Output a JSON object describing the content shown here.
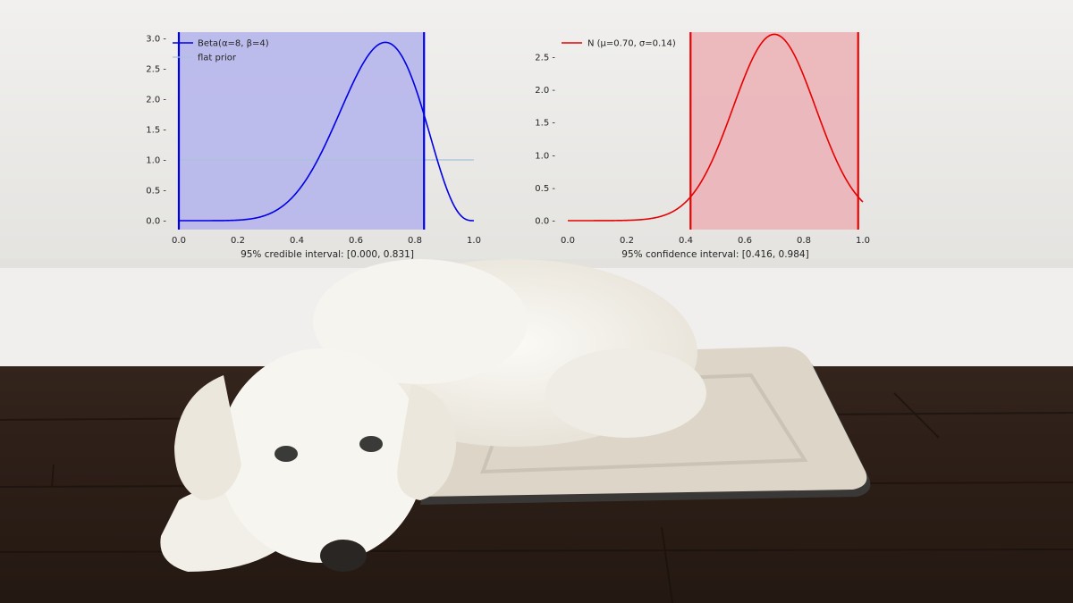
{
  "colors": {
    "beta_curve": "#0000e6",
    "beta_fill": "#b3b3ec",
    "flat_prior": "#a8c2d8",
    "normal_curve": "#e60000",
    "normal_fill": "#ebb4b8",
    "wall": "#ebeae8",
    "floor": "#2a1c16",
    "dog": "#f4f1ea",
    "mat": "#dcd5c8"
  },
  "chart_data": [
    {
      "type": "line",
      "xlim": [
        0,
        1
      ],
      "ylim": [
        -0.15,
        3.05
      ],
      "xticks": [
        "0.0",
        "0.2",
        "0.4",
        "0.6",
        "0.8",
        "1.0"
      ],
      "yticks": [
        "0.0 -",
        "0.5 -",
        "1.0 -",
        "1.5 -",
        "2.0 -",
        "2.5 -",
        "3.0 -"
      ],
      "xlabel": "95% credible interval: [0.000, 0.831]",
      "legend_position": "top-left",
      "grid": false,
      "shaded_interval": [
        0.0,
        0.831
      ],
      "series": [
        {
          "name": "Beta(α=8, β=4)",
          "distribution": "beta",
          "alpha": 8,
          "beta": 4,
          "peak": [
            0.7,
            2.95
          ]
        },
        {
          "name": "flat prior",
          "distribution": "uniform",
          "value": 1.0
        }
      ]
    },
    {
      "type": "line",
      "xlim": [
        0,
        1
      ],
      "ylim": [
        -0.15,
        2.85
      ],
      "xticks": [
        "0.0",
        "0.2",
        "0.4",
        "0.6",
        "0.8",
        "1.0"
      ],
      "yticks": [
        "0.0 -",
        "0.5 -",
        "1.0 -",
        "1.5 -",
        "2.0 -",
        "2.5 -"
      ],
      "xlabel": "95% confidence interval: [0.416, 0.984]",
      "legend_position": "top-left",
      "grid": false,
      "shaded_interval": [
        0.416,
        0.984
      ],
      "series": [
        {
          "name": "N (μ=0.70, σ=0.14)",
          "distribution": "normal",
          "mu": 0.7,
          "sigma": 0.14,
          "peak": [
            0.7,
            2.77
          ]
        }
      ]
    }
  ]
}
